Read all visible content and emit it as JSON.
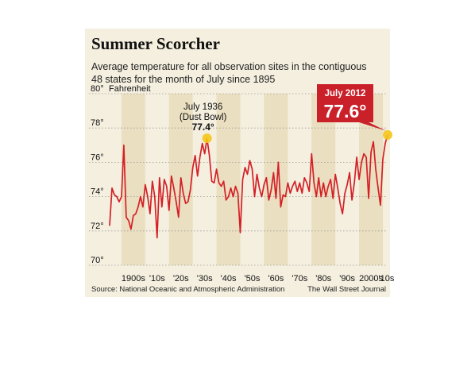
{
  "title": "Summer Scorcher",
  "subtitle_line1": "Average temperature for all observation sites in the contiguous",
  "subtitle_line2": "48 states for the month of July since 1895",
  "source": "Source: National Oceanic and Atmospheric Administration",
  "credit": "The Wall Street Journal",
  "colors": {
    "line": "#d42027",
    "band": "#eadfc0",
    "panel": "#f4efdf",
    "highlight": "#f5c518",
    "callout": "#c9202a"
  },
  "chart_data": {
    "type": "line",
    "ylim": [
      70,
      80
    ],
    "xlim": [
      1895,
      2012
    ],
    "ylabel": "Fahrenheit",
    "y_ticks": [
      {
        "value": 80,
        "label": "80°"
      },
      {
        "value": 78,
        "label": "78°"
      },
      {
        "value": 76,
        "label": "76°"
      },
      {
        "value": 74,
        "label": "74°"
      },
      {
        "value": 72,
        "label": "72°"
      },
      {
        "value": 70,
        "label": "70°"
      }
    ],
    "decades": [
      {
        "start": 1900,
        "label": "1900s"
      },
      {
        "start": 1910,
        "label": "'10s"
      },
      {
        "start": 1920,
        "label": "'20s"
      },
      {
        "start": 1930,
        "label": "'30s"
      },
      {
        "start": 1940,
        "label": "'40s"
      },
      {
        "start": 1950,
        "label": "'50s"
      },
      {
        "start": 1960,
        "label": "'60s"
      },
      {
        "start": 1970,
        "label": "'70s"
      },
      {
        "start": 1980,
        "label": "'80s"
      },
      {
        "start": 1990,
        "label": "'90s"
      },
      {
        "start": 2000,
        "label": "2000s"
      },
      {
        "start": 2010,
        "label": "'10s"
      }
    ],
    "grid": true,
    "x": [
      1895,
      1896,
      1897,
      1898,
      1899,
      1900,
      1901,
      1902,
      1903,
      1904,
      1905,
      1906,
      1907,
      1908,
      1909,
      1910,
      1911,
      1912,
      1913,
      1914,
      1915,
      1916,
      1917,
      1918,
      1919,
      1920,
      1921,
      1922,
      1923,
      1924,
      1925,
      1926,
      1927,
      1928,
      1929,
      1930,
      1931,
      1932,
      1933,
      1934,
      1935,
      1936,
      1937,
      1938,
      1939,
      1940,
      1941,
      1942,
      1943,
      1944,
      1945,
      1946,
      1947,
      1948,
      1949,
      1950,
      1951,
      1952,
      1953,
      1954,
      1955,
      1956,
      1957,
      1958,
      1959,
      1960,
      1961,
      1962,
      1963,
      1964,
      1965,
      1966,
      1967,
      1968,
      1969,
      1970,
      1971,
      1972,
      1973,
      1974,
      1975,
      1976,
      1977,
      1978,
      1979,
      1980,
      1981,
      1982,
      1983,
      1984,
      1985,
      1986,
      1987,
      1988,
      1989,
      1990,
      1991,
      1992,
      1993,
      1994,
      1995,
      1996,
      1997,
      1998,
      1999,
      2000,
      2001,
      2002,
      2003,
      2004,
      2005,
      2006,
      2007,
      2008,
      2009,
      2010,
      2011,
      2012
    ],
    "series": [
      {
        "values": [
          72.3,
          74.5,
          74.1,
          74.0,
          73.7,
          74.0,
          77.0,
          72.8,
          72.6,
          72.1,
          72.9,
          73.0,
          73.4,
          74.0,
          73.4,
          74.7,
          74.0,
          73.0,
          74.9,
          74.0,
          71.6,
          75.1,
          73.4,
          75.0,
          74.6,
          73.2,
          75.2,
          74.5,
          73.7,
          72.8,
          75.1,
          74.2,
          73.6,
          73.7,
          74.4,
          75.7,
          76.4,
          75.2,
          76.3,
          77.1,
          76.5,
          77.4,
          76.4,
          74.9,
          74.8,
          75.6,
          74.8,
          74.6,
          74.9,
          73.8,
          74.0,
          74.5,
          74.0,
          74.6,
          74.2,
          71.9,
          75.0,
          75.7,
          75.3,
          76.1,
          75.6,
          74.0,
          75.3,
          74.5,
          74.0,
          74.7,
          75.1,
          73.8,
          74.4,
          75.4,
          73.9,
          76.0,
          73.4,
          74.1,
          74.0,
          74.8,
          74.2,
          74.6,
          74.9,
          74.3,
          74.8,
          74.2,
          75.1,
          74.8,
          74.3,
          76.5,
          74.8,
          74.0,
          75.1,
          74.0,
          74.8,
          74.0,
          74.6,
          75.0,
          73.9,
          75.3,
          74.5,
          73.6,
          73.0,
          74.2,
          74.7,
          75.4,
          73.8,
          74.8,
          76.3,
          75.0,
          76.0,
          76.5,
          76.3,
          73.9,
          76.6,
          77.2,
          75.6,
          74.5,
          73.5,
          76.2,
          77.1,
          77.6
        ]
      }
    ],
    "annotations": [
      {
        "year": 1936,
        "value": 77.4,
        "line1": "July 1936",
        "line2": "(Dust Bowl)",
        "value_label": "77.4°"
      },
      {
        "year": 2012,
        "value": 77.6,
        "line1": "July 2012",
        "value_label": "77.6°"
      }
    ]
  }
}
